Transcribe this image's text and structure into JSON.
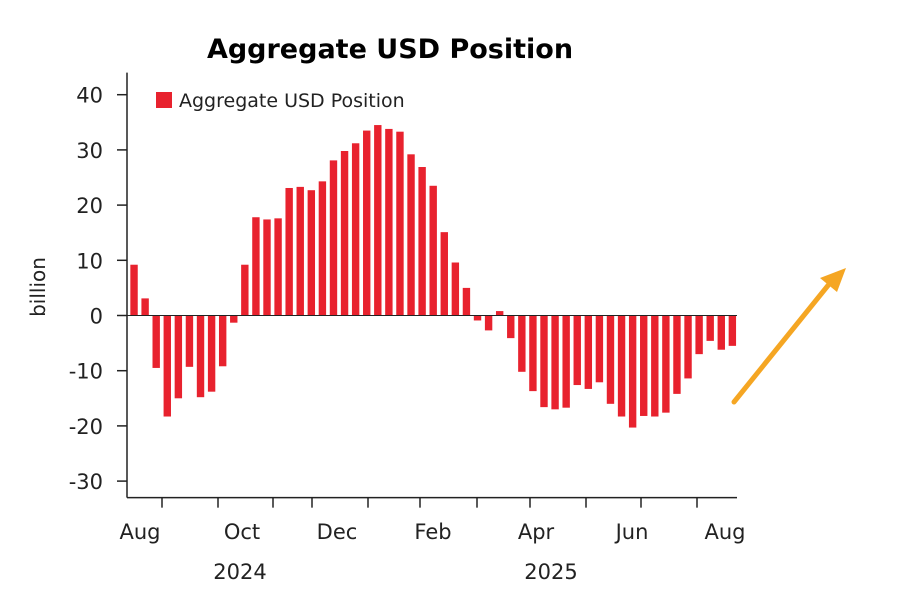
{
  "chart_data": {
    "type": "bar",
    "title": "Aggregate USD Position",
    "ylabel": "billion",
    "ylim": [
      -33,
      44
    ],
    "yticks": [
      40,
      30,
      20,
      10,
      0,
      -10,
      -20,
      -30
    ],
    "xtick_labels": [
      "Aug",
      "Oct",
      "Dec",
      "Feb",
      "Apr",
      "Jun",
      "Aug"
    ],
    "year_labels": [
      "2024",
      "2025"
    ],
    "legend": {
      "label": "Aggregate USD Position",
      "position": "top-left"
    },
    "arrow_annotation": {
      "direction": "up-right",
      "color": "#f5a623"
    },
    "series": [
      {
        "name": "Aggregate USD Position",
        "color": "#e8222e",
        "values": [
          9.2,
          3.1,
          -9.5,
          -18.3,
          -15.0,
          -9.3,
          -14.8,
          -13.8,
          -9.2,
          -1.3,
          9.2,
          17.8,
          17.4,
          17.6,
          23.1,
          23.3,
          22.7,
          24.3,
          28.1,
          29.8,
          31.2,
          33.5,
          34.5,
          33.8,
          33.3,
          29.2,
          26.9,
          23.5,
          15.1,
          9.6,
          5.0,
          -0.9,
          -2.7,
          0.8,
          -4.1,
          -10.2,
          -13.7,
          -16.6,
          -17.0,
          -16.7,
          -12.6,
          -13.3,
          -12.1,
          -16.0,
          -18.3,
          -20.3,
          -18.2,
          -18.3,
          -17.6,
          -14.2,
          -11.4,
          -7.0,
          -4.6,
          -6.2,
          -5.5
        ]
      }
    ]
  }
}
